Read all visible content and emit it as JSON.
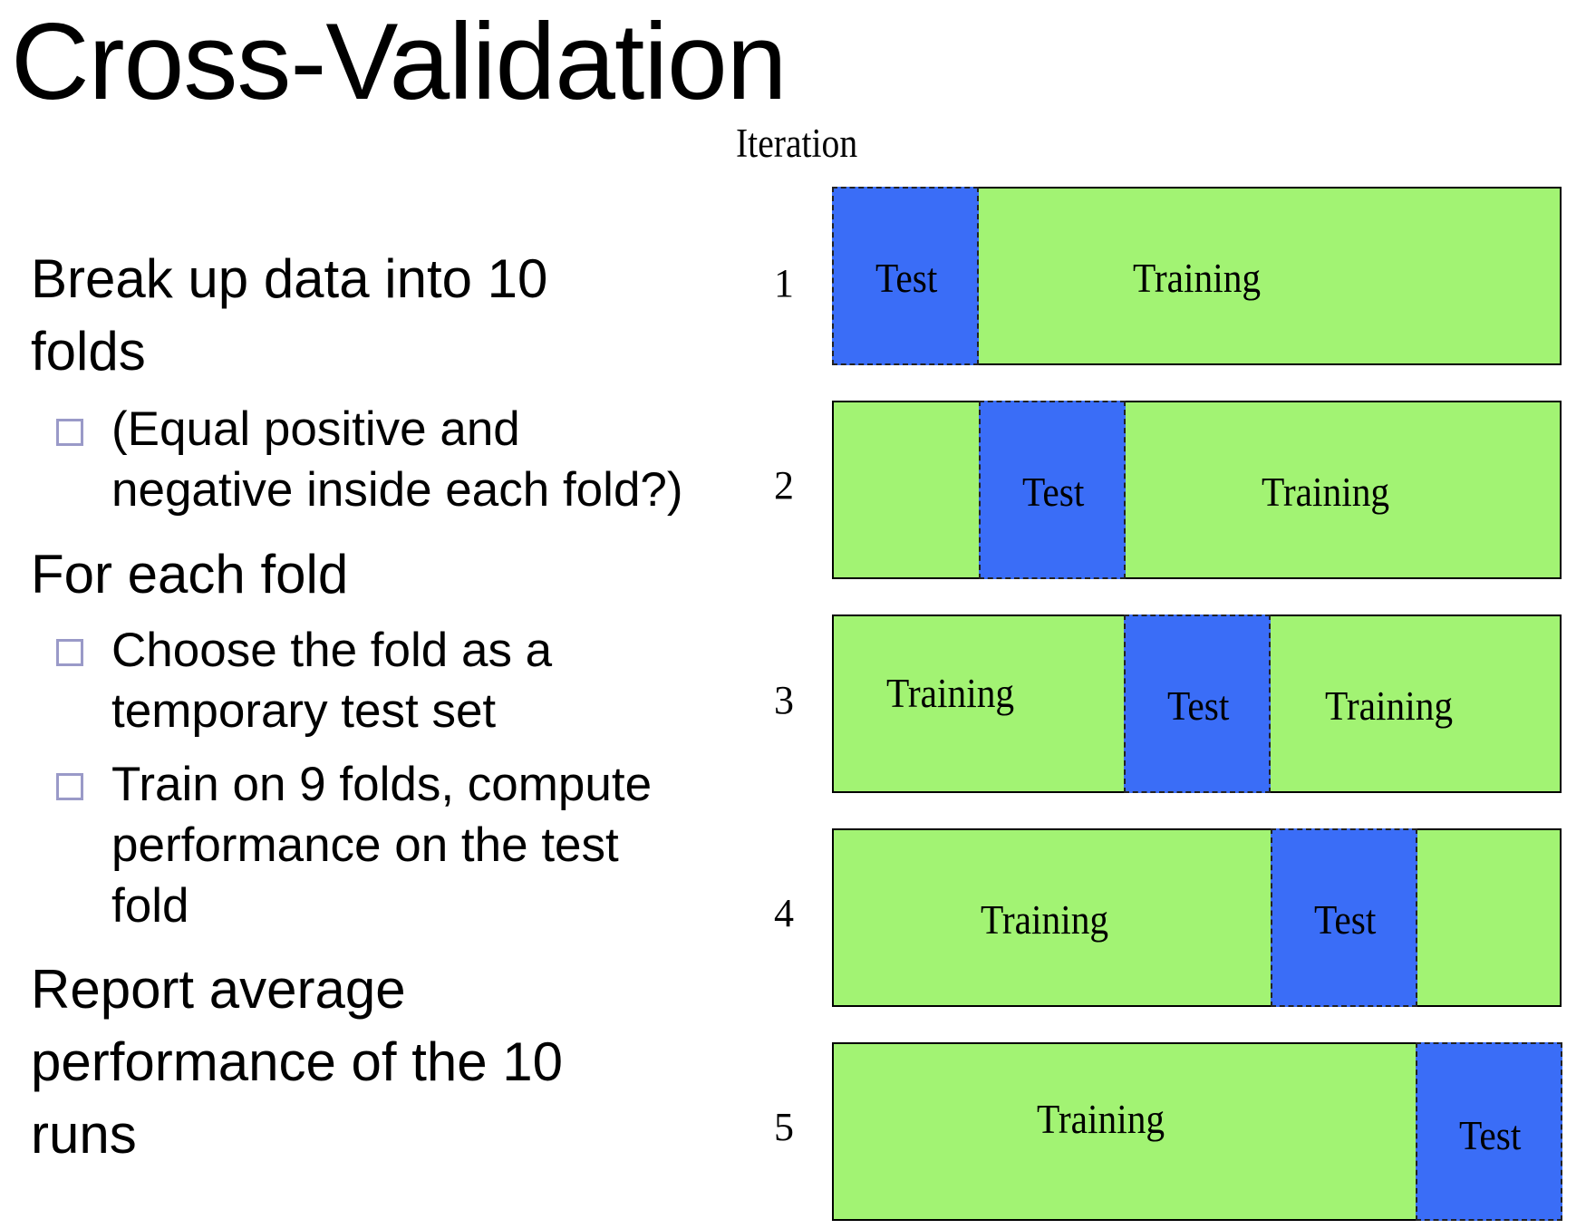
{
  "title": "Cross-Validation",
  "diagram": {
    "iteration_label": "Iteration",
    "colors": {
      "test": "#3a6df7",
      "training": "#a2f373"
    },
    "rows": [
      {
        "num": "1",
        "segments": [
          {
            "type": "test",
            "label": "Test"
          },
          {
            "type": "training",
            "label": "Training"
          }
        ]
      },
      {
        "num": "2",
        "segments": [
          {
            "type": "test",
            "label": "Test"
          },
          {
            "type": "training",
            "label": "Training"
          }
        ]
      },
      {
        "num": "3",
        "segments": [
          {
            "type": "training",
            "label": "Training"
          },
          {
            "type": "test",
            "label": "Test"
          },
          {
            "type": "training",
            "label": "Training"
          }
        ]
      },
      {
        "num": "4",
        "segments": [
          {
            "type": "training",
            "label": "Training"
          },
          {
            "type": "test",
            "label": "Test"
          }
        ]
      },
      {
        "num": "5",
        "segments": [
          {
            "type": "training",
            "label": "Training"
          },
          {
            "type": "test",
            "label": "Test"
          }
        ]
      }
    ]
  },
  "bullets": [
    {
      "text_lines": [
        "Break up data into 10",
        "folds"
      ],
      "sub": [
        {
          "text_lines": [
            "(Equal positive and",
            "negative inside each fold?)"
          ]
        }
      ]
    },
    {
      "text_lines": [
        "For each fold"
      ],
      "sub": [
        {
          "text_lines": [
            "Choose the fold as a",
            "temporary test set"
          ]
        },
        {
          "text_lines": [
            "Train on 9 folds, compute",
            "performance on the test",
            "fold"
          ]
        }
      ]
    },
    {
      "text_lines": [
        "Report average",
        "performance of the 10",
        "runs"
      ],
      "sub": []
    }
  ]
}
